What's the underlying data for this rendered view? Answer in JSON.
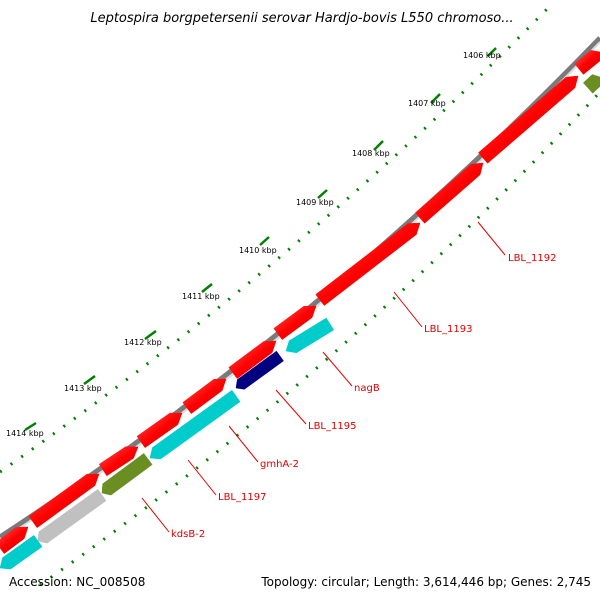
{
  "title": "Leptospira borgpetersenii serovar Hardjo-bovis L550 chromoso...",
  "footer": {
    "accession": "Accession: NC_008508",
    "summary": "Topology: circular; Length: 3,614,446 bp; Genes: 2,745"
  },
  "ticks": [
    {
      "label": "1406 kbp"
    },
    {
      "label": "1407 kbp"
    },
    {
      "label": "1408 kbp"
    },
    {
      "label": "1409 kbp"
    },
    {
      "label": "1410 kbp"
    },
    {
      "label": "1411 kbp"
    },
    {
      "label": "1412 kbp"
    },
    {
      "label": "1413 kbp"
    },
    {
      "label": "1414 kbp"
    }
  ],
  "gene_labels": [
    {
      "name": "LBL_1192"
    },
    {
      "name": "LBL_1193"
    },
    {
      "name": "nagB"
    },
    {
      "name": "LBL_1195"
    },
    {
      "name": "gmhA-2"
    },
    {
      "name": "LBL_1197"
    },
    {
      "name": "kdsB-2"
    }
  ],
  "colors": {
    "backbone": "#808080",
    "forward_cds": "#ff0000",
    "reverse_cds": "#00cccc",
    "reverse_dark": "#000080",
    "olive": "#6b8e23",
    "grey_feature": "#c0c0c0",
    "tick_green": "#008000",
    "label_red": "#e00000"
  }
}
